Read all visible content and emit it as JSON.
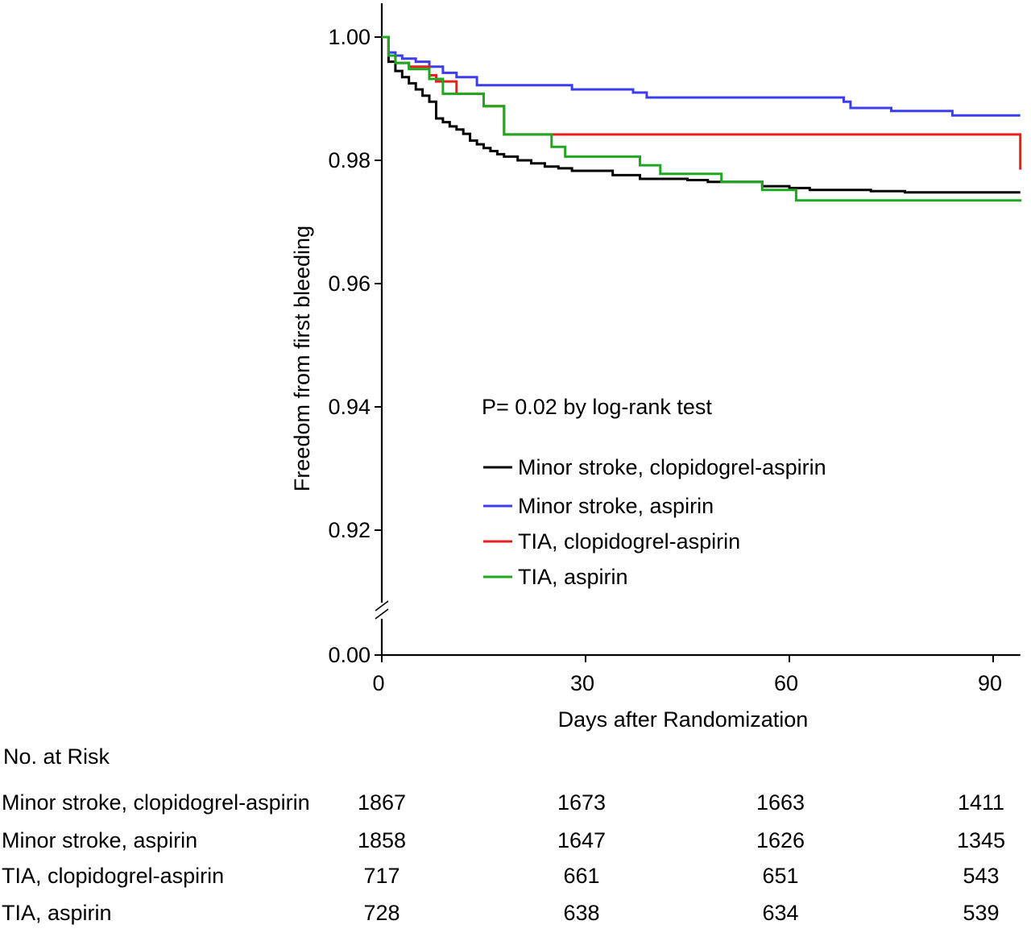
{
  "chart_data": {
    "type": "line",
    "title": "",
    "xlabel": "Days after Randomization",
    "ylabel": "Freedom from first bleeding",
    "xlim": [
      0,
      94
    ],
    "ylim": [
      0.9,
      1.005
    ],
    "y_axis_break": true,
    "y_axis_below_break_tick": "0.00",
    "x_ticks": [
      "0",
      "30",
      "60",
      "90"
    ],
    "y_ticks": [
      "0.92",
      "0.94",
      "0.96",
      "0.98",
      "1.00"
    ],
    "annotation": "P= 0.02 by log-rank test",
    "legend_placement": "center-right",
    "grid": false,
    "series": [
      {
        "name": "Minor stroke, clopidogrel-aspirin",
        "color": "#000000",
        "x": [
          0,
          1,
          2,
          3,
          4,
          5,
          6,
          7,
          8,
          9,
          10,
          11,
          12,
          13,
          14,
          15,
          16,
          17,
          18,
          20,
          22,
          24,
          26,
          28,
          34,
          38,
          45,
          48,
          56,
          60,
          63,
          72,
          77,
          94
        ],
        "y": [
          1.0,
          0.996,
          0.9945,
          0.9935,
          0.9925,
          0.9915,
          0.9905,
          0.9895,
          0.9868,
          0.9862,
          0.9855,
          0.985,
          0.9843,
          0.9832,
          0.9826,
          0.982,
          0.9815,
          0.981,
          0.9806,
          0.98,
          0.9795,
          0.979,
          0.9787,
          0.9783,
          0.9776,
          0.977,
          0.9768,
          0.9765,
          0.9758,
          0.9755,
          0.9752,
          0.975,
          0.9748,
          0.9748
        ]
      },
      {
        "name": "Minor stroke, aspirin",
        "color": "#3d3df0",
        "x": [
          0,
          1,
          2,
          3,
          5,
          7,
          9,
          11,
          14,
          28,
          37,
          39,
          67,
          68,
          69,
          75,
          84,
          94
        ],
        "y": [
          1.0,
          0.9975,
          0.997,
          0.9965,
          0.996,
          0.9952,
          0.9942,
          0.9935,
          0.9922,
          0.9915,
          0.991,
          0.9902,
          0.9902,
          0.9895,
          0.9885,
          0.988,
          0.9873,
          0.9873
        ]
      },
      {
        "name": "TIA, clopidogrel-aspirin",
        "color": "#e51f1f",
        "x": [
          0,
          1,
          2,
          4,
          7,
          8,
          11,
          15,
          18,
          93.5,
          94
        ],
        "y": [
          1.0,
          0.997,
          0.9958,
          0.9952,
          0.9938,
          0.9928,
          0.9908,
          0.9888,
          0.9842,
          0.9842,
          0.9785
        ]
      },
      {
        "name": "TIA, aspirin",
        "color": "#1fa81f",
        "x": [
          0,
          1,
          2,
          4,
          7,
          9,
          15,
          18,
          25,
          27,
          38,
          41,
          50,
          56,
          61,
          94
        ],
        "y": [
          1.0,
          0.997,
          0.9958,
          0.9948,
          0.9932,
          0.9908,
          0.9888,
          0.9842,
          0.9822,
          0.9806,
          0.9792,
          0.9778,
          0.9765,
          0.9752,
          0.9735,
          0.9733
        ]
      }
    ]
  },
  "risk_table": {
    "title": "No. at Risk",
    "rows": [
      {
        "label": "Minor stroke, clopidogrel-aspirin",
        "values": [
          "1867",
          "1673",
          "1663",
          "1411"
        ]
      },
      {
        "label": "Minor stroke, aspirin",
        "values": [
          "1858",
          "1647",
          "1626",
          "1345"
        ]
      },
      {
        "label": "TIA, clopidogrel-aspirin",
        "values": [
          "717",
          "661",
          "651",
          "543"
        ]
      },
      {
        "label": "TIA, aspirin",
        "values": [
          "728",
          "638",
          "634",
          "539"
        ]
      }
    ]
  }
}
